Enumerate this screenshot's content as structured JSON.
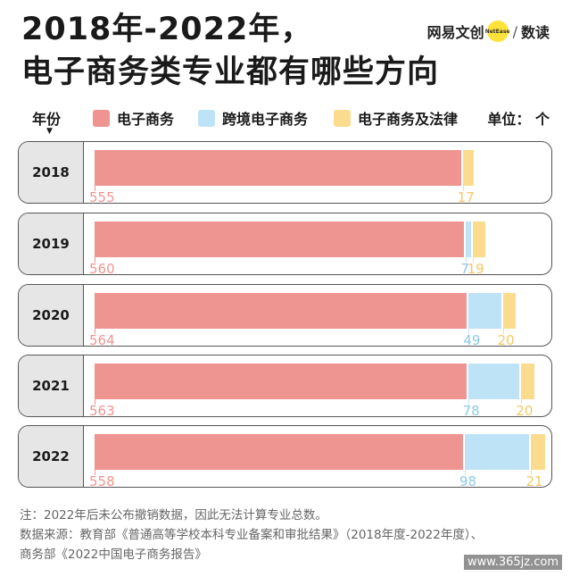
{
  "title_line1": "2018年-2022年，",
  "title_line2": "电子商务类专业都有哪些方向",
  "brand": {
    "left": "网易文创",
    "dot": "NetEase",
    "right": "数读"
  },
  "legend": {
    "year_header": "年份",
    "arrow": "▼",
    "unit": "单位：  个",
    "items": [
      {
        "label": "电子商务",
        "color": "#ef9591"
      },
      {
        "label": "跨境电子商务",
        "color": "#bfe3f6"
      },
      {
        "label": "电子商务及法律",
        "color": "#fbdc8e"
      }
    ]
  },
  "chart_data": {
    "type": "bar",
    "orientation": "horizontal",
    "stacked": true,
    "categories": [
      "2018",
      "2019",
      "2020",
      "2021",
      "2022"
    ],
    "series": [
      {
        "name": "电子商务",
        "values": [
          555,
          560,
          564,
          563,
          558
        ],
        "color": "#ef9591"
      },
      {
        "name": "跨境电子商务",
        "values": [
          0,
          7,
          49,
          78,
          98
        ],
        "color": "#bfe3f6"
      },
      {
        "name": "电子商务及法律",
        "values": [
          17,
          19,
          20,
          20,
          21
        ],
        "color": "#fbdc8e"
      }
    ],
    "value_labels": [
      [
        "555",
        "",
        "17"
      ],
      [
        "560",
        "7",
        "19"
      ],
      [
        "564",
        "49",
        "20"
      ],
      [
        "563",
        "78",
        "20"
      ],
      [
        "558",
        "98",
        "21"
      ]
    ]
  },
  "notes": {
    "line1": "注：2022年后未公布撤销数据，因此无法计算专业总数。",
    "line2": "数据来源：教育部《普通高等学校本科专业备案和审批结果》（2018年度-2022年度）、",
    "line3": "商务部《2022中国电子商务报告》"
  },
  "watermark": "www.365jz.com"
}
